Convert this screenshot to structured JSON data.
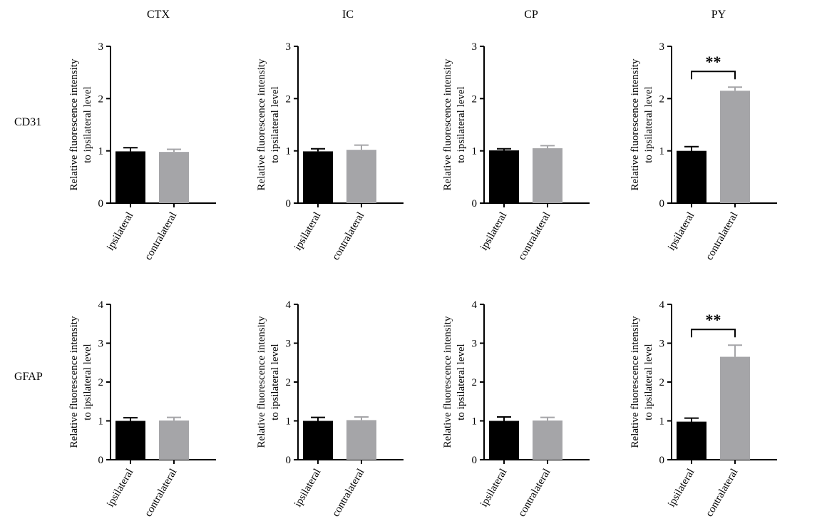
{
  "figure": {
    "column_titles": [
      "CTX",
      "IC",
      "CP",
      "PY"
    ],
    "row_titles": [
      "CD31",
      "GFAP"
    ]
  },
  "colors": {
    "ipsilateral_bar": "#000000",
    "contralateral_bar": "#a5a5a8",
    "error_bar_ipsilateral": "#000000",
    "error_bar_contralateral": "#a5a5a8"
  },
  "chart_data": [
    {
      "type": "bar",
      "panel": "CD31 CTX",
      "categories": [
        "ipsilateral",
        "contralateral"
      ],
      "values": [
        0.99,
        0.98
      ],
      "errors": [
        0.07,
        0.05
      ],
      "ylabel": "Relative fluorescence intensity to ipsilateral level",
      "ylim": [
        0,
        3
      ],
      "yticks": [
        "0",
        "1",
        "2",
        "3"
      ],
      "significance": ""
    },
    {
      "type": "bar",
      "panel": "CD31 IC",
      "categories": [
        "ipsilateral",
        "contralateral"
      ],
      "values": [
        0.99,
        1.02
      ],
      "errors": [
        0.05,
        0.09
      ],
      "ylabel": "Relative fluorescence intensity to ipsilateral level",
      "ylim": [
        0,
        3
      ],
      "yticks": [
        "0",
        "1",
        "2",
        "3"
      ],
      "significance": ""
    },
    {
      "type": "bar",
      "panel": "CD31 CP",
      "categories": [
        "ipsilateral",
        "contralateral"
      ],
      "values": [
        1.01,
        1.05
      ],
      "errors": [
        0.03,
        0.05
      ],
      "ylabel": "Relative fluorescence intensity to ipsilateral level",
      "ylim": [
        0,
        3
      ],
      "yticks": [
        "0",
        "1",
        "2",
        "3"
      ],
      "significance": ""
    },
    {
      "type": "bar",
      "panel": "CD31 PY",
      "categories": [
        "ipsilateral",
        "contralateral"
      ],
      "values": [
        1.0,
        2.15
      ],
      "errors": [
        0.08,
        0.07
      ],
      "ylabel": "Relative fluorescence intensity to ipsilateral level",
      "ylim": [
        0,
        3
      ],
      "yticks": [
        "0",
        "1",
        "2",
        "3"
      ],
      "significance": "**"
    },
    {
      "type": "bar",
      "panel": "GFAP CTX",
      "categories": [
        "ipsilateral",
        "contralateral"
      ],
      "values": [
        1.0,
        1.01
      ],
      "errors": [
        0.08,
        0.08
      ],
      "ylabel": "Relative fluorescence intensity to ipsilateral level",
      "ylim": [
        0,
        4
      ],
      "yticks": [
        "0",
        "1",
        "2",
        "3",
        "4"
      ],
      "significance": ""
    },
    {
      "type": "bar",
      "panel": "GFAP IC",
      "categories": [
        "ipsilateral",
        "contralateral"
      ],
      "values": [
        1.0,
        1.02
      ],
      "errors": [
        0.09,
        0.08
      ],
      "ylabel": "Relative fluorescence intensity to ipsilateral level",
      "ylim": [
        0,
        4
      ],
      "yticks": [
        "0",
        "1",
        "2",
        "3",
        "4"
      ],
      "significance": ""
    },
    {
      "type": "bar",
      "panel": "GFAP CP",
      "categories": [
        "ipsilateral",
        "contralateral"
      ],
      "values": [
        1.0,
        1.01
      ],
      "errors": [
        0.1,
        0.08
      ],
      "ylabel": "Relative fluorescence intensity to ipsilateral level",
      "ylim": [
        0,
        4
      ],
      "yticks": [
        "0",
        "1",
        "2",
        "3",
        "4"
      ],
      "significance": ""
    },
    {
      "type": "bar",
      "panel": "GFAP PY",
      "categories": [
        "ipsilateral",
        "contralateral"
      ],
      "values": [
        0.98,
        2.65
      ],
      "errors": [
        0.09,
        0.3
      ],
      "ylabel": "Relative fluorescence intensity to ipsilateral level",
      "ylim": [
        0,
        4
      ],
      "yticks": [
        "0",
        "1",
        "2",
        "3",
        "4"
      ],
      "significance": "**"
    }
  ]
}
